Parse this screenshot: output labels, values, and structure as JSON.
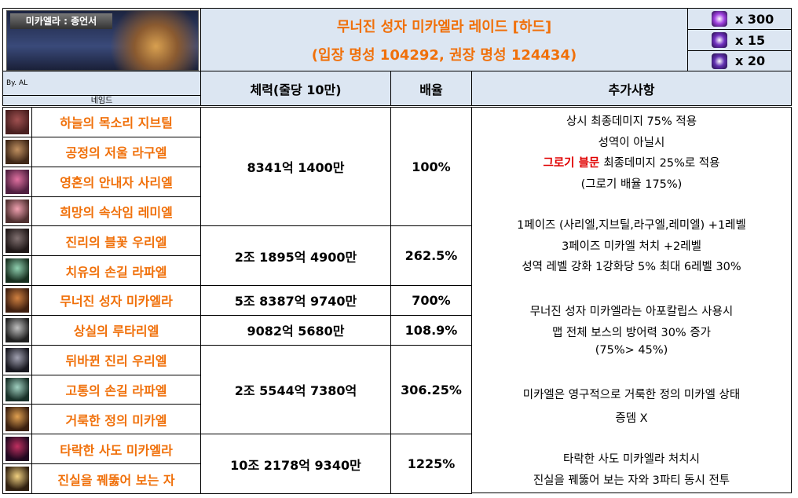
{
  "banner": {
    "label": "미카엘라 : 종언서"
  },
  "title": "무너진 성자 미카엘라 레이드 [하드]",
  "subtitle": "(입장 명성 104292, 권장 명성 124434)",
  "rewards": [
    "x 300",
    "x 15",
    "x 20"
  ],
  "author": "By. AL",
  "table": {
    "headers": [
      "네임드",
      "체력(줄당 10만)",
      "배율",
      "추가사항"
    ],
    "groups": [
      {
        "names": [
          "하늘의 목소리 지브틸",
          "공정의 저울 라구엘",
          "영혼의 안내자 사리엘",
          "희망의 속삭임 레미엘"
        ],
        "hp": "8341억 1400만",
        "multiplier": "100%"
      },
      {
        "names": [
          "진리의 블꽃 우리엘",
          "치유의 손길 라파엘"
        ],
        "hp": "2조 1895억 4900만",
        "multiplier": "262.5%"
      },
      {
        "names": [
          "무너진 성자 미카엘라"
        ],
        "hp": "5조 8387억 9740만",
        "multiplier": "700%"
      },
      {
        "names": [
          "상실의 루타리엘"
        ],
        "hp": "9082억 5680만",
        "multiplier": "108.9%"
      },
      {
        "names": [
          "뒤바뀐 진리 우리엘",
          "고통의 손길 라파엘",
          "거룩한 정의 미카엘"
        ],
        "hp": "2조 5544억 7380억",
        "multiplier": "306.25%"
      },
      {
        "names": [
          "타락한 사도 미카엘라",
          "진실을 꿰뚫어 보는 자"
        ],
        "hp": "10조 2178억 9340만",
        "multiplier": "1225%"
      }
    ],
    "notes": [
      [
        "상시 최종데미지 75% 적용",
        "성역이 아닐시",
        {
          "emphasis": "그로기 블문",
          "text": "최종데미지 25%로 적용"
        },
        "(그로기 배율 175%)"
      ],
      [
        "1페이즈 (사리엘,지브틸,라구엘,레미엘) +1레벨",
        "3페이즈 미카엘 처치 +2레벨",
        "성역 레벨 강화 1강화당 5% 최대 6레벨 30%"
      ],
      [
        "무너진 성자 미카엘라는 아포칼립스 사용시",
        "맵 전체 보스의 방어력 30% 증가",
        "(75%> 45%)"
      ],
      [
        "미카엘은 영구적으로 거룩한 정의 미카엘 상태",
        "증뎀 X"
      ],
      [
        "타락한 사도 미카엘라 처치시",
        "진실을 꿰뚫어 보는 자와 3파티 동시 전투"
      ]
    ]
  }
}
